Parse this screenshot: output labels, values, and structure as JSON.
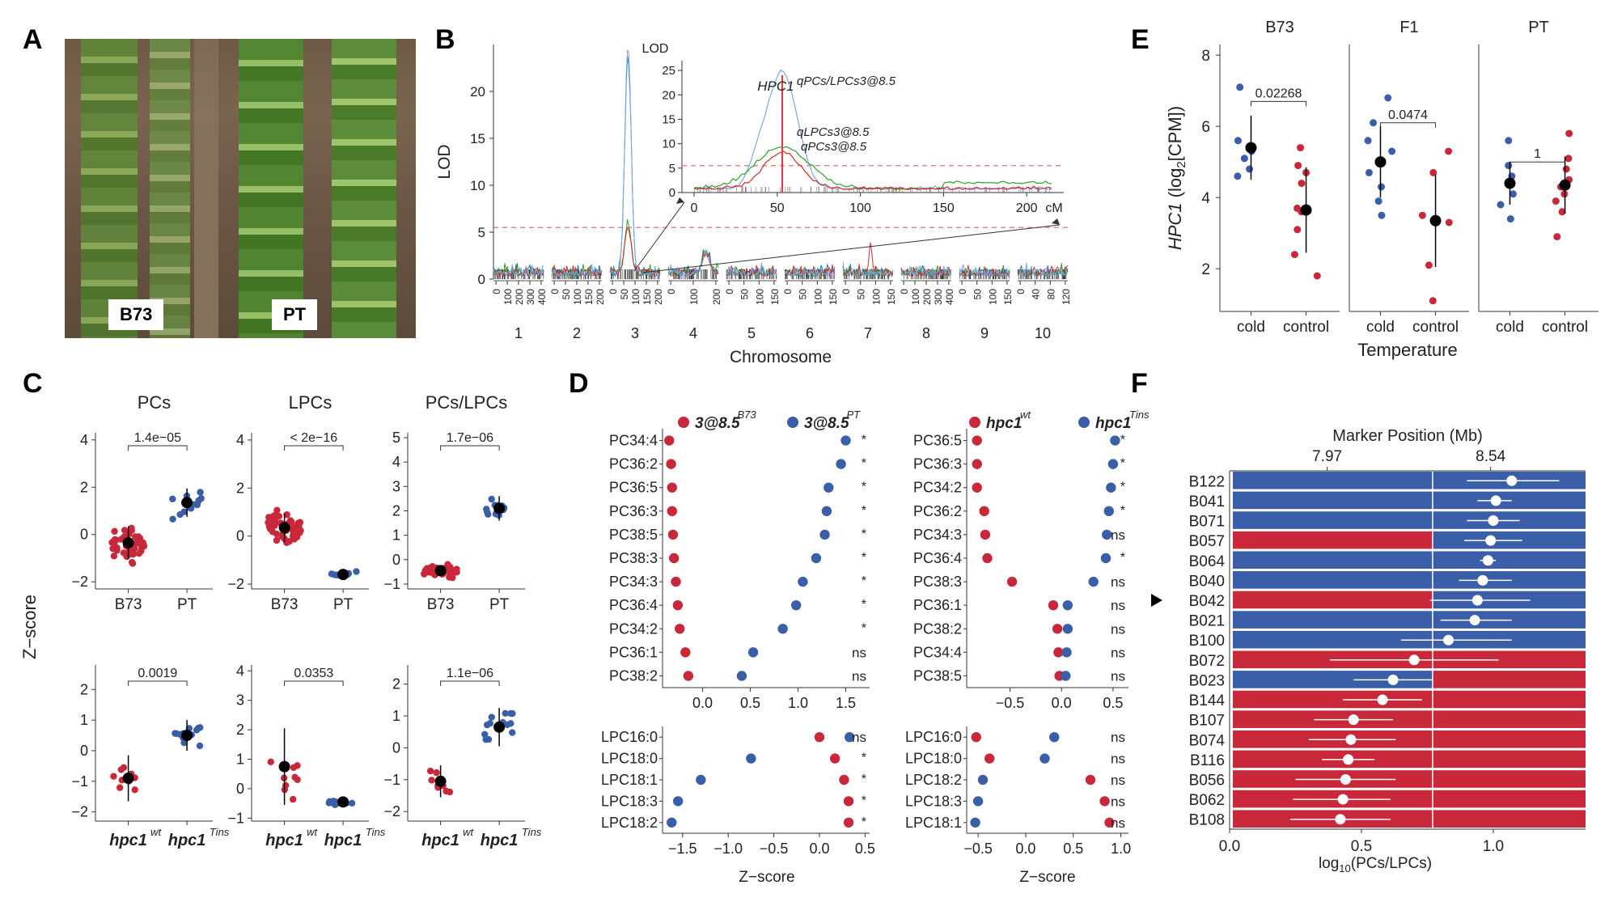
{
  "panels": {
    "A": "A",
    "B": "B",
    "C": "C",
    "D": "D",
    "E": "E",
    "F": "F"
  },
  "A": {
    "labels": [
      "B73",
      "PT"
    ]
  },
  "B": {
    "ylabel": "LOD",
    "xlabel": "Chromosome",
    "chromosomes": [
      "1",
      "2",
      "3",
      "4",
      "5",
      "6",
      "7",
      "8",
      "9",
      "10"
    ],
    "chrom_ticks": [
      [
        "0",
        "100",
        "200",
        "300",
        "400"
      ],
      [
        "0",
        "50",
        "100",
        "150",
        "200"
      ],
      [
        "0",
        "50",
        "100",
        "150",
        "200"
      ],
      [
        "0",
        "100",
        "200"
      ],
      [
        "0",
        "50",
        "100",
        "150"
      ],
      [
        "0",
        "50",
        "100",
        "150"
      ],
      [
        "0",
        "50",
        "100",
        "150"
      ],
      [
        "0",
        "100",
        "200",
        "300",
        "400"
      ],
      [
        "0",
        "50",
        "100",
        "150"
      ],
      [
        "0",
        "40",
        "80",
        "120"
      ]
    ],
    "yticks": [
      "0",
      "5",
      "10",
      "15",
      "20"
    ],
    "inset_ylabel": "LOD",
    "inset_yticks": [
      "0",
      "5",
      "10",
      "15",
      "20",
      "25"
    ],
    "inset_xticks": [
      "0",
      "50",
      "100",
      "150",
      "200"
    ],
    "inset_xunit": "cM",
    "gene": "HPC1",
    "qtl_labels": [
      "qPCs/LPCs3@8.5",
      "qLPCs3@8.5",
      "qPCs3@8.5"
    ],
    "threshold": 5.5,
    "series_colors": [
      "#1f77b4",
      "#2ca02c",
      "#d62728",
      "#7fa7e8"
    ]
  },
  "C": {
    "ylabel": "Z−score",
    "top": [
      {
        "title": "PCs",
        "p": "1.4e−05",
        "cats": [
          "B73",
          "PT"
        ],
        "yticks": [
          "−2",
          "0",
          "2",
          "4"
        ]
      },
      {
        "title": "LPCs",
        "p": "< 2e−16",
        "cats": [
          "B73",
          "PT"
        ],
        "yticks": [
          "−2",
          "0",
          "2",
          "4"
        ]
      },
      {
        "title": "PCs/LPCs",
        "p": "1.7e−06",
        "cats": [
          "B73",
          "PT"
        ],
        "yticks": [
          "−1",
          "0",
          "1",
          "2",
          "3",
          "4",
          "5"
        ]
      }
    ],
    "bottom": [
      {
        "p": "0.0019",
        "yticks": [
          "−2",
          "−1",
          "0",
          "1",
          "2"
        ]
      },
      {
        "p": "0.0353",
        "yticks": [
          "−1",
          "0",
          "1",
          "2",
          "3",
          "4"
        ]
      },
      {
        "p": "1.1e−06",
        "yticks": [
          "−2",
          "−1",
          "0",
          "1",
          "2"
        ]
      }
    ],
    "bottom_cats": [
      "hpc1",
      "hpc1"
    ],
    "bottom_sups": [
      "wt",
      "Tins"
    ]
  },
  "D": {
    "xlabel": "Z−score",
    "left_legend": [
      {
        "text": "3@8.5",
        "sup": "B73",
        "color": "#c8283a"
      },
      {
        "text": "3@8.5",
        "sup": "PT",
        "color": "#3a5fa8"
      }
    ],
    "right_legend": [
      {
        "text": "hpc1",
        "sup": "wt",
        "color": "#c8283a"
      },
      {
        "text": "hpc1",
        "sup": "Tins",
        "color": "#3a5fa8"
      }
    ],
    "left_top": [
      {
        "name": "PC34:4",
        "red": -0.35,
        "blue": 1.5,
        "sig": "*"
      },
      {
        "name": "PC36:2",
        "red": -0.33,
        "blue": 1.45,
        "sig": "*"
      },
      {
        "name": "PC36:5",
        "red": -0.32,
        "blue": 1.32,
        "sig": "*"
      },
      {
        "name": "PC36:3",
        "red": -0.32,
        "blue": 1.3,
        "sig": "*"
      },
      {
        "name": "PC38:5",
        "red": -0.31,
        "blue": 1.28,
        "sig": "*"
      },
      {
        "name": "PC38:3",
        "red": -0.3,
        "blue": 1.19,
        "sig": "*"
      },
      {
        "name": "PC34:3",
        "red": -0.28,
        "blue": 1.05,
        "sig": "*"
      },
      {
        "name": "PC36:4",
        "red": -0.26,
        "blue": 0.98,
        "sig": "*"
      },
      {
        "name": "PC34:2",
        "red": -0.24,
        "blue": 0.84,
        "sig": "*"
      },
      {
        "name": "PC36:1",
        "red": -0.18,
        "blue": 0.53,
        "sig": "ns"
      },
      {
        "name": "PC38:2",
        "red": -0.15,
        "blue": 0.41,
        "sig": "ns"
      }
    ],
    "left_top_xticks": [
      "0.0",
      "0.5",
      "1.0",
      "1.5"
    ],
    "left_bottom": [
      {
        "name": "LPC16:0",
        "red": 0.0,
        "blue": 0.33,
        "sig": "ns"
      },
      {
        "name": "LPC18:0",
        "red": 0.17,
        "blue": -0.75,
        "sig": "*"
      },
      {
        "name": "LPC18:1",
        "red": 0.27,
        "blue": -1.3,
        "sig": "*"
      },
      {
        "name": "LPC18:3",
        "red": 0.32,
        "blue": -1.55,
        "sig": "*"
      },
      {
        "name": "LPC18:2",
        "red": 0.32,
        "blue": -1.62,
        "sig": "*"
      }
    ],
    "left_bottom_xticks": [
      "−1.5",
      "−1.0",
      "−0.5",
      "0.0",
      "0.5"
    ],
    "right_top": [
      {
        "name": "PC36:5",
        "red": -0.82,
        "blue": 0.52,
        "sig": "*"
      },
      {
        "name": "PC36:3",
        "red": -0.82,
        "blue": 0.5,
        "sig": "*"
      },
      {
        "name": "PC34:2",
        "red": -0.82,
        "blue": 0.48,
        "sig": "*"
      },
      {
        "name": "PC36:2",
        "red": -0.75,
        "blue": 0.46,
        "sig": "*"
      },
      {
        "name": "PC34:3",
        "red": -0.74,
        "blue": 0.44,
        "sig": "ns"
      },
      {
        "name": "PC36:4",
        "red": -0.72,
        "blue": 0.43,
        "sig": "*"
      },
      {
        "name": "PC38:3",
        "red": -0.48,
        "blue": 0.31,
        "sig": "ns"
      },
      {
        "name": "PC36:1",
        "red": -0.08,
        "blue": 0.06,
        "sig": "ns"
      },
      {
        "name": "PC38:2",
        "red": -0.04,
        "blue": 0.06,
        "sig": "ns"
      },
      {
        "name": "PC34:4",
        "red": -0.03,
        "blue": 0.05,
        "sig": "ns"
      },
      {
        "name": "PC38:5",
        "red": -0.02,
        "blue": 0.04,
        "sig": "ns"
      }
    ],
    "right_top_xticks": [
      "−0.5",
      "0.0",
      "0.5"
    ],
    "right_bottom": [
      {
        "name": "LPC16:0",
        "red": -0.52,
        "blue": 0.3,
        "sig": "ns"
      },
      {
        "name": "LPC18:0",
        "red": -0.38,
        "blue": 0.2,
        "sig": "ns"
      },
      {
        "name": "LPC18:2",
        "red": 0.68,
        "blue": -0.45,
        "sig": "ns"
      },
      {
        "name": "LPC18:3",
        "red": 0.83,
        "blue": -0.5,
        "sig": "ns"
      },
      {
        "name": "LPC18:1",
        "red": 0.88,
        "blue": -0.53,
        "sig": "ns"
      }
    ],
    "right_bottom_xticks": [
      "−0.5",
      "0.0",
      "0.5",
      "1.0"
    ]
  },
  "E": {
    "ylabel_gene": "HPC1",
    "ylabel_rest": "(log",
    "ylabel_sub": "2",
    "ylabel_end": "[CPM])",
    "xlabel": "Temperature",
    "groups": [
      {
        "title": "B73",
        "p": "0.02268"
      },
      {
        "title": "F1",
        "p": "0.0474"
      },
      {
        "title": "PT",
        "p": "1"
      }
    ],
    "cats": [
      "cold",
      "control"
    ],
    "yticks": [
      "2",
      "4",
      "6",
      "8"
    ]
  },
  "F": {
    "top_title": "Marker Position (Mb)",
    "top_ticks": [
      "7.97",
      "8.54"
    ],
    "xlabel_main": "log",
    "xlabel_sub": "10",
    "xlabel_end": "(PCs/LPCs)",
    "xticks": [
      "0.0",
      "0.5",
      "1.0"
    ],
    "colors": {
      "blue": "#3a5fa8",
      "red": "#c8283a"
    },
    "lines": [
      {
        "name": "B122",
        "left": "blue",
        "right": "blue",
        "mean": 1.07,
        "lo": 0.9,
        "hi": 1.25
      },
      {
        "name": "B041",
        "left": "blue",
        "right": "blue",
        "mean": 1.01,
        "lo": 0.94,
        "hi": 1.07
      },
      {
        "name": "B071",
        "left": "blue",
        "right": "blue",
        "mean": 1.0,
        "lo": 0.9,
        "hi": 1.1
      },
      {
        "name": "B057",
        "left": "red",
        "right": "blue",
        "mean": 0.99,
        "lo": 0.89,
        "hi": 1.11
      },
      {
        "name": "B064",
        "left": "blue",
        "right": "blue",
        "mean": 0.98,
        "lo": 0.95,
        "hi": 1.01
      },
      {
        "name": "B040",
        "left": "blue",
        "right": "blue",
        "mean": 0.96,
        "lo": 0.87,
        "hi": 1.07
      },
      {
        "name": "B042",
        "left": "red",
        "right": "blue",
        "mean": 0.94,
        "lo": 0.76,
        "hi": 1.14
      },
      {
        "name": "B021",
        "left": "blue",
        "right": "blue",
        "mean": 0.93,
        "lo": 0.8,
        "hi": 1.07
      },
      {
        "name": "B100",
        "left": "blue",
        "right": "blue",
        "mean": 0.83,
        "lo": 0.65,
        "hi": 1.07
      },
      {
        "name": "B072",
        "left": "red",
        "right": "red",
        "mean": 0.7,
        "lo": 0.38,
        "hi": 1.02
      },
      {
        "name": "B023",
        "left": "blue",
        "right": "red",
        "mean": 0.62,
        "lo": 0.47,
        "hi": 0.77
      },
      {
        "name": "B144",
        "left": "red",
        "right": "red",
        "mean": 0.58,
        "lo": 0.43,
        "hi": 0.73
      },
      {
        "name": "B107",
        "left": "red",
        "right": "red",
        "mean": 0.47,
        "lo": 0.32,
        "hi": 0.62
      },
      {
        "name": "B074",
        "left": "red",
        "right": "red",
        "mean": 0.46,
        "lo": 0.3,
        "hi": 0.63
      },
      {
        "name": "B116",
        "left": "red",
        "right": "red",
        "mean": 0.45,
        "lo": 0.35,
        "hi": 0.55
      },
      {
        "name": "B056",
        "left": "red",
        "right": "red",
        "mean": 0.44,
        "lo": 0.25,
        "hi": 0.63
      },
      {
        "name": "B062",
        "left": "red",
        "right": "red",
        "mean": 0.43,
        "lo": 0.24,
        "hi": 0.61
      },
      {
        "name": "B108",
        "left": "red",
        "right": "red",
        "mean": 0.42,
        "lo": 0.23,
        "hi": 0.61
      }
    ],
    "highlight": "B042"
  }
}
